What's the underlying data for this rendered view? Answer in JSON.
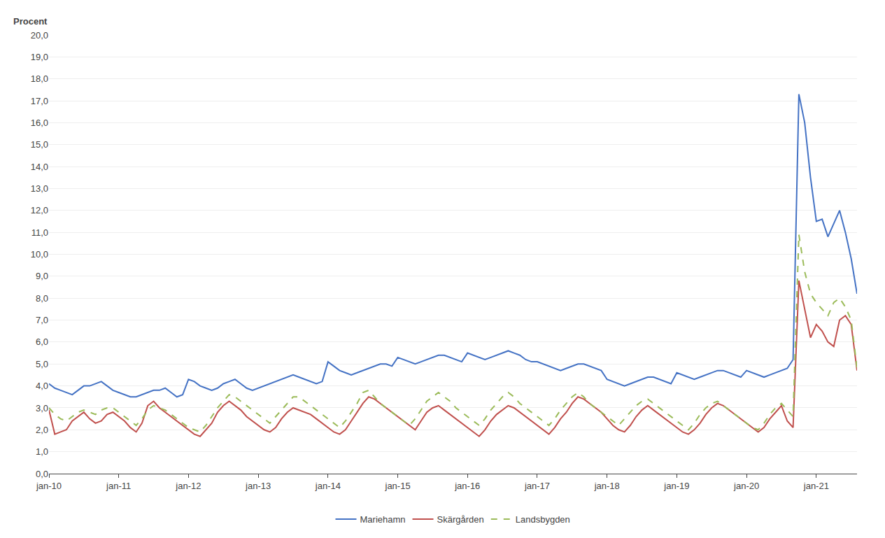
{
  "chart_data": {
    "type": "line",
    "ylabel": "Procent",
    "ylim": [
      0,
      20.0
    ],
    "yticks": [
      {
        "value": 0.0,
        "label": "0,0"
      },
      {
        "value": 1.0,
        "label": "1,0"
      },
      {
        "value": 2.0,
        "label": "2,0"
      },
      {
        "value": 3.0,
        "label": "3,0"
      },
      {
        "value": 4.0,
        "label": "4,0"
      },
      {
        "value": 5.0,
        "label": "5,0"
      },
      {
        "value": 6.0,
        "label": "6,0"
      },
      {
        "value": 7.0,
        "label": "7,0"
      },
      {
        "value": 8.0,
        "label": "8,0"
      },
      {
        "value": 9.0,
        "label": "9,0"
      },
      {
        "value": 10.0,
        "label": "10,0"
      },
      {
        "value": 11.0,
        "label": "11,0"
      },
      {
        "value": 12.0,
        "label": "12,0"
      },
      {
        "value": 13.0,
        "label": "13,0"
      },
      {
        "value": 14.0,
        "label": "14,0"
      },
      {
        "value": 15.0,
        "label": "15,0"
      },
      {
        "value": 16.0,
        "label": "16,0"
      },
      {
        "value": 17.0,
        "label": "17,0"
      },
      {
        "value": 18.0,
        "label": "18,0"
      },
      {
        "value": 19.0,
        "label": "19,0"
      },
      {
        "value": 20.0,
        "label": "20,0"
      }
    ],
    "grid": true,
    "legend": "bottom",
    "categories": [
      "jan-10",
      null,
      null,
      null,
      null,
      null,
      null,
      null,
      null,
      null,
      null,
      null,
      "jan-11",
      null,
      null,
      null,
      null,
      null,
      null,
      null,
      null,
      null,
      null,
      null,
      "jan-12",
      null,
      null,
      null,
      null,
      null,
      null,
      null,
      null,
      null,
      null,
      null,
      "jan-13",
      null,
      null,
      null,
      null,
      null,
      null,
      null,
      null,
      null,
      null,
      null,
      "jan-14",
      null,
      null,
      null,
      null,
      null,
      null,
      null,
      null,
      null,
      null,
      null,
      "jan-15",
      null,
      null,
      null,
      null,
      null,
      null,
      null,
      null,
      null,
      null,
      null,
      "jan-16",
      null,
      null,
      null,
      null,
      null,
      null,
      null,
      null,
      null,
      null,
      null,
      "jan-17",
      null,
      null,
      null,
      null,
      null,
      null,
      null,
      null,
      null,
      null,
      null,
      "jan-18",
      null,
      null,
      null,
      null,
      null,
      null,
      null,
      null,
      null,
      null,
      null,
      "jan-19",
      null,
      null,
      null,
      null,
      null,
      null,
      null,
      null,
      null,
      null,
      null,
      "jan-20",
      null,
      null,
      null,
      null,
      null,
      null,
      null,
      null,
      null,
      null,
      null,
      "jan-21",
      null,
      null,
      null,
      null,
      null,
      null,
      null
    ],
    "series": [
      {
        "name": "Mariehamn",
        "color": "#4472C4",
        "line_style": "solid",
        "values": [
          4.1,
          3.9,
          3.8,
          3.7,
          3.6,
          3.8,
          4.0,
          4.0,
          4.1,
          4.2,
          4.0,
          3.8,
          3.7,
          3.6,
          3.5,
          3.5,
          3.6,
          3.7,
          3.8,
          3.8,
          3.9,
          3.7,
          3.5,
          3.6,
          4.3,
          4.2,
          4.0,
          3.9,
          3.8,
          3.9,
          4.1,
          4.2,
          4.3,
          4.1,
          3.9,
          3.8,
          3.9,
          4.0,
          4.1,
          4.2,
          4.3,
          4.4,
          4.5,
          4.4,
          4.3,
          4.2,
          4.1,
          4.2,
          5.1,
          4.9,
          4.7,
          4.6,
          4.5,
          4.6,
          4.7,
          4.8,
          4.9,
          5.0,
          5.0,
          4.9,
          5.3,
          5.2,
          5.1,
          5.0,
          5.1,
          5.2,
          5.3,
          5.4,
          5.4,
          5.3,
          5.2,
          5.1,
          5.5,
          5.4,
          5.3,
          5.2,
          5.3,
          5.4,
          5.5,
          5.6,
          5.5,
          5.4,
          5.2,
          5.1,
          5.1,
          5.0,
          4.9,
          4.8,
          4.7,
          4.8,
          4.9,
          5.0,
          5.0,
          4.9,
          4.8,
          4.7,
          4.3,
          4.2,
          4.1,
          4.0,
          4.1,
          4.2,
          4.3,
          4.4,
          4.4,
          4.3,
          4.2,
          4.1,
          4.6,
          4.5,
          4.4,
          4.3,
          4.4,
          4.5,
          4.6,
          4.7,
          4.7,
          4.6,
          4.5,
          4.4,
          4.7,
          4.6,
          4.5,
          4.4,
          4.5,
          4.6,
          4.7,
          4.8,
          5.2,
          17.3,
          16.0,
          13.5,
          11.5,
          11.6,
          10.8,
          11.4,
          12.0,
          11.0,
          9.8,
          8.2
        ]
      },
      {
        "name": "Skärgården",
        "color": "#C0504D",
        "line_style": "solid",
        "values": [
          2.9,
          1.8,
          1.9,
          2.0,
          2.4,
          2.6,
          2.8,
          2.5,
          2.3,
          2.4,
          2.7,
          2.8,
          2.6,
          2.4,
          2.1,
          1.9,
          2.3,
          3.1,
          3.3,
          3.0,
          2.8,
          2.6,
          2.4,
          2.2,
          2.0,
          1.8,
          1.7,
          2.0,
          2.3,
          2.8,
          3.1,
          3.3,
          3.1,
          2.9,
          2.6,
          2.4,
          2.2,
          2.0,
          1.9,
          2.1,
          2.5,
          2.8,
          3.0,
          2.9,
          2.8,
          2.7,
          2.5,
          2.3,
          2.1,
          1.9,
          1.8,
          2.0,
          2.4,
          2.8,
          3.2,
          3.5,
          3.4,
          3.2,
          3.0,
          2.8,
          2.6,
          2.4,
          2.2,
          2.0,
          2.4,
          2.8,
          3.0,
          3.1,
          2.9,
          2.7,
          2.5,
          2.3,
          2.1,
          1.9,
          1.7,
          2.0,
          2.4,
          2.7,
          2.9,
          3.1,
          3.0,
          2.8,
          2.6,
          2.4,
          2.2,
          2.0,
          1.8,
          2.1,
          2.5,
          2.8,
          3.2,
          3.5,
          3.4,
          3.2,
          3.0,
          2.8,
          2.5,
          2.2,
          2.0,
          1.9,
          2.2,
          2.6,
          2.9,
          3.1,
          2.9,
          2.7,
          2.5,
          2.3,
          2.1,
          1.9,
          1.8,
          2.0,
          2.3,
          2.7,
          3.0,
          3.2,
          3.1,
          2.9,
          2.7,
          2.5,
          2.3,
          2.1,
          1.9,
          2.1,
          2.5,
          2.8,
          3.1,
          2.4,
          2.1,
          8.8,
          7.5,
          6.2,
          6.8,
          6.5,
          6.0,
          5.8,
          7.0,
          7.2,
          6.8,
          4.7
        ]
      },
      {
        "name": "Landsbygden",
        "color": "#9BBB59",
        "line_style": "dashed",
        "values": [
          3.0,
          2.7,
          2.5,
          2.4,
          2.6,
          2.8,
          2.9,
          2.8,
          2.7,
          2.9,
          3.0,
          3.0,
          2.8,
          2.6,
          2.4,
          2.2,
          2.5,
          2.9,
          3.1,
          3.0,
          2.9,
          2.7,
          2.5,
          2.3,
          2.1,
          2.0,
          1.9,
          2.2,
          2.6,
          3.0,
          3.3,
          3.6,
          3.5,
          3.3,
          3.1,
          2.9,
          2.7,
          2.5,
          2.3,
          2.6,
          2.9,
          3.2,
          3.5,
          3.5,
          3.3,
          3.1,
          2.9,
          2.7,
          2.5,
          2.3,
          2.1,
          2.4,
          2.8,
          3.2,
          3.7,
          3.8,
          3.5,
          3.2,
          3.0,
          2.8,
          2.6,
          2.4,
          2.2,
          2.5,
          2.9,
          3.3,
          3.5,
          3.7,
          3.5,
          3.3,
          3.0,
          2.8,
          2.6,
          2.4,
          2.2,
          2.5,
          2.9,
          3.2,
          3.5,
          3.7,
          3.5,
          3.2,
          3.0,
          2.8,
          2.6,
          2.4,
          2.2,
          2.5,
          2.9,
          3.2,
          3.5,
          3.7,
          3.5,
          3.2,
          3.0,
          2.8,
          2.6,
          2.4,
          2.2,
          2.5,
          2.8,
          3.1,
          3.3,
          3.4,
          3.2,
          3.0,
          2.8,
          2.6,
          2.4,
          2.2,
          2.0,
          2.3,
          2.7,
          3.0,
          3.2,
          3.3,
          3.1,
          2.9,
          2.7,
          2.5,
          2.3,
          2.1,
          2.0,
          2.3,
          2.7,
          3.0,
          3.2,
          2.9,
          2.6,
          10.9,
          9.2,
          8.2,
          7.8,
          7.5,
          7.2,
          7.8,
          8.0,
          7.6,
          7.0,
          4.8
        ]
      }
    ]
  }
}
